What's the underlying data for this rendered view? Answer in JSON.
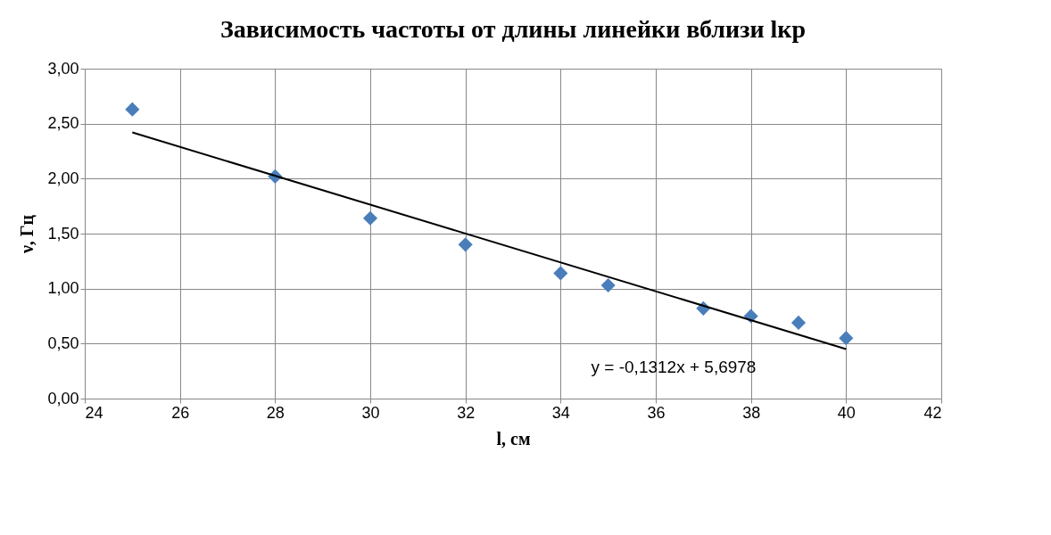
{
  "chart_data": {
    "type": "scatter",
    "title": "Зависимость частоты от длины линейки вблизи lкр",
    "xlabel": "l, см",
    "ylabel": "ν, Гц",
    "x": [
      25,
      28,
      30,
      32,
      34,
      35,
      37,
      38,
      39,
      40
    ],
    "series": [
      {
        "color": "#4a7ebb",
        "marker": "diamond",
        "values": [
          2.63,
          2.02,
          1.64,
          1.4,
          1.14,
          1.03,
          0.82,
          0.75,
          0.69,
          0.55
        ]
      },
      {
        "type": "line",
        "color": "#000000",
        "x": [
          25,
          40
        ],
        "values": [
          2.42,
          0.45
        ]
      }
    ],
    "annotations": [
      "y = -0,1312x + 5,6978"
    ],
    "xlim": [
      24,
      42
    ],
    "xticks": [
      24,
      26,
      28,
      30,
      32,
      34,
      36,
      38,
      40,
      42
    ],
    "ylim": [
      0,
      3
    ],
    "yticks": [
      {
        "value": 0,
        "label": "0,00"
      },
      {
        "value": 0.5,
        "label": "0,50"
      },
      {
        "value": 1,
        "label": "1,00"
      },
      {
        "value": 1.5,
        "label": "1,50"
      },
      {
        "value": 2,
        "label": "2,00"
      },
      {
        "value": 2.5,
        "label": "2,50"
      },
      {
        "value": 3,
        "label": "3,00"
      }
    ],
    "grid": true
  }
}
